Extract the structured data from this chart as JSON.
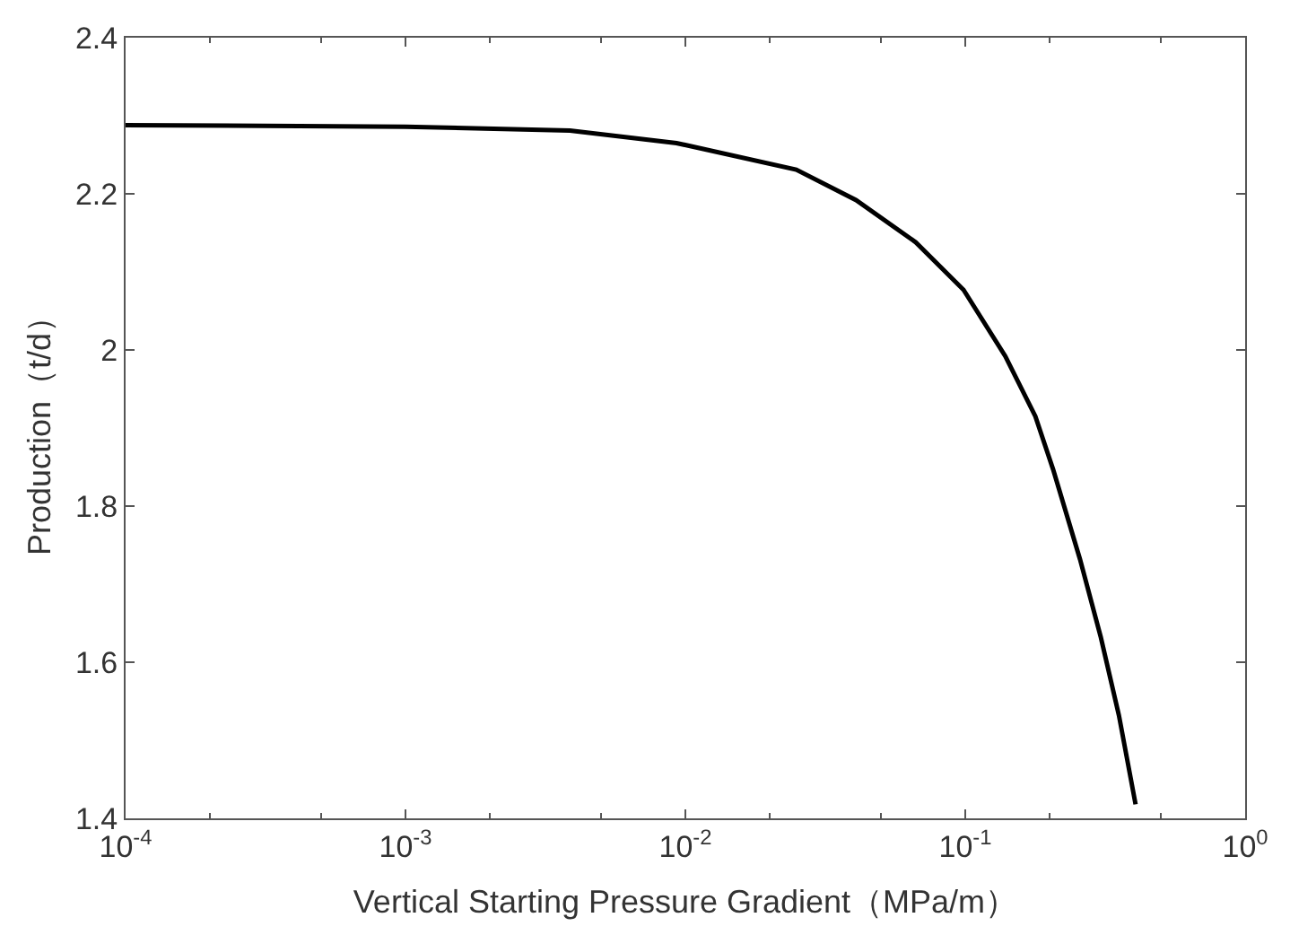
{
  "chart_data": {
    "type": "line",
    "xlabel": "Vertical Starting Pressure Gradient（MPa/m）",
    "ylabel": "Production（t/d）",
    "log": "x",
    "marker": "none",
    "line_style": "solid",
    "xlim": [
      0.0001,
      1
    ],
    "ylim": [
      1.4,
      2.4
    ],
    "xticks": [
      {
        "value": 0.0001,
        "label": "10$^{-4}$"
      },
      {
        "value": 0.001,
        "label": "10$^{-3}$"
      },
      {
        "value": 0.01,
        "label": "10$^{-2}$"
      },
      {
        "value": 0.1,
        "label": "10$^{-1}$"
      },
      {
        "value": 1,
        "label": "10$^{0}$"
      }
    ],
    "yticks": [
      1.4,
      1.6,
      1.8,
      2,
      2.2,
      2.4
    ],
    "x": [
      0.0001,
      0.001,
      0.00387,
      0.0093,
      0.0249,
      0.0407,
      0.0665,
      0.0986,
      0.139,
      0.178,
      0.206,
      0.257,
      0.305,
      0.354,
      0.406
    ],
    "series": [
      {
        "color": "#000000",
        "values": [
          2.288,
          2.286,
          2.281,
          2.265,
          2.231,
          2.192,
          2.138,
          2.077,
          1.992,
          1.915,
          1.847,
          1.732,
          1.632,
          1.532,
          1.418
        ]
      }
    ]
  }
}
